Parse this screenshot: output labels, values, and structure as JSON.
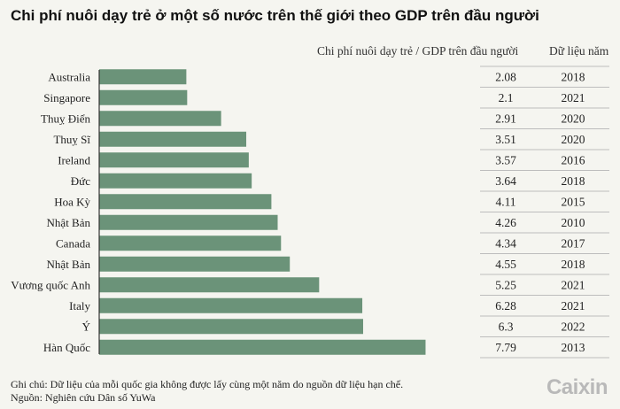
{
  "title": "Chi phí nuôi dạy trẻ ở một số nước trên thế giới theo GDP trên đầu người",
  "column_headers": {
    "value": "Chi phí nuôi dạy trẻ / GDP trên đầu người",
    "year": "Dữ liệu năm"
  },
  "chart_data": {
    "type": "bar",
    "orientation": "horizontal",
    "categories": [
      "Australia",
      "Singapore",
      "Thuỵ Điển",
      "Thuỵ Sĩ",
      "Ireland",
      "Đức",
      "Hoa Kỳ",
      "Nhật Bản",
      "Canada",
      "Nhật Bản",
      "Vương quốc Anh",
      "Italy",
      "Ý",
      "Hàn Quốc"
    ],
    "values": [
      2.08,
      2.1,
      2.91,
      3.51,
      3.57,
      3.64,
      4.11,
      4.26,
      4.34,
      4.55,
      5.25,
      6.28,
      6.3,
      7.79
    ],
    "value_labels": [
      "2.08",
      "2.1",
      "2.91",
      "3.51",
      "3.57",
      "3.64",
      "4.11",
      "4.26",
      "4.34",
      "4.55",
      "5.25",
      "6.28",
      "6.3",
      "7.79"
    ],
    "years": [
      "2018",
      "2021",
      "2020",
      "2020",
      "2016",
      "2018",
      "2015",
      "2010",
      "2017",
      "2018",
      "2021",
      "2021",
      "2022",
      "2013"
    ],
    "bar_color": "#6b9379",
    "xlim": [
      0,
      8
    ]
  },
  "footnotes": {
    "note": "Ghi chú: Dữ liệu của mỗi quốc gia không được lấy cùng một năm do nguồn dữ liệu hạn chế.",
    "source": "Nguồn: Nghiên cứu Dân số YuWa"
  },
  "logo": "Caixin"
}
